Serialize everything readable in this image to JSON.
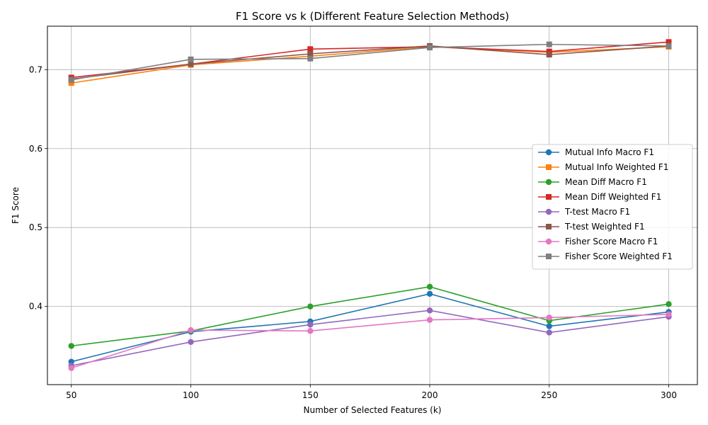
{
  "chart_data": {
    "type": "line",
    "title": "F1 Score vs k (Different Feature Selection Methods)",
    "xlabel": "Number of Selected Features (k)",
    "ylabel": "F1 Score",
    "x": [
      50,
      100,
      150,
      200,
      250,
      300
    ],
    "xticks": [
      "50",
      "100",
      "150",
      "200",
      "250",
      "300"
    ],
    "yticks": [
      "0.4",
      "0.5",
      "0.6",
      "0.7"
    ],
    "xlim": [
      40,
      312
    ],
    "ylim": [
      0.301,
      0.755
    ],
    "grid": true,
    "legend_position": "center-right",
    "series": [
      {
        "name": "Mutual Info Macro F1",
        "color": "#1f77b4",
        "marker": "circle",
        "values": [
          0.33,
          0.368,
          0.381,
          0.416,
          0.375,
          0.393
        ]
      },
      {
        "name": "Mutual Info Weighted F1",
        "color": "#ff7f0e",
        "marker": "square",
        "values": [
          0.683,
          0.706,
          0.717,
          0.729,
          0.722,
          0.729
        ]
      },
      {
        "name": "Mean Diff Macro F1",
        "color": "#2ca02c",
        "marker": "circle",
        "values": [
          0.35,
          0.369,
          0.4,
          0.425,
          0.382,
          0.403
        ]
      },
      {
        "name": "Mean Diff Weighted F1",
        "color": "#d62728",
        "marker": "square",
        "values": [
          0.69,
          0.707,
          0.726,
          0.729,
          0.723,
          0.735
        ]
      },
      {
        "name": "T-test Macro F1",
        "color": "#9467bd",
        "marker": "circle",
        "values": [
          0.325,
          0.355,
          0.377,
          0.395,
          0.367,
          0.387
        ]
      },
      {
        "name": "T-test Weighted F1",
        "color": "#8c564b",
        "marker": "square",
        "values": [
          0.688,
          0.707,
          0.72,
          0.73,
          0.719,
          0.73
        ]
      },
      {
        "name": "Fisher Score Macro F1",
        "color": "#e377c2",
        "marker": "circle",
        "values": [
          0.322,
          0.37,
          0.369,
          0.383,
          0.386,
          0.39
        ]
      },
      {
        "name": "Fisher Score Weighted F1",
        "color": "#7f7f7f",
        "marker": "square",
        "values": [
          0.687,
          0.713,
          0.714,
          0.728,
          0.732,
          0.73
        ]
      }
    ]
  }
}
